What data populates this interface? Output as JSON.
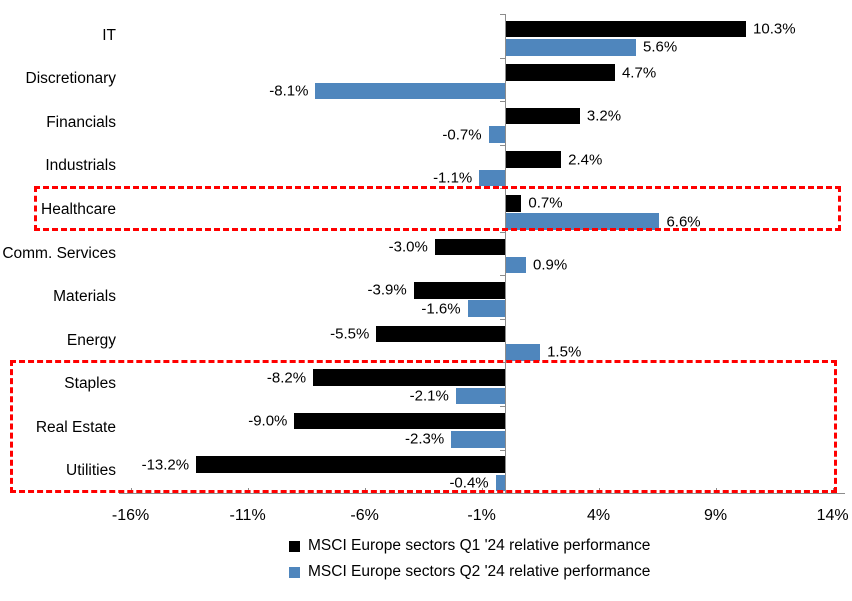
{
  "chart_data": {
    "type": "bar",
    "orientation": "horizontal",
    "title": "",
    "categories": [
      "IT",
      "Discretionary",
      "Financials",
      "Industrials",
      "Healthcare",
      "Comm. Services",
      "Materials",
      "Energy",
      "Staples",
      "Real Estate",
      "Utilities"
    ],
    "series": [
      {
        "name": "MSCI Europe sectors Q1 '24 relative performance",
        "color": "#000000",
        "values": [
          10.3,
          4.7,
          3.2,
          2.4,
          0.7,
          -3.0,
          -3.9,
          -5.5,
          -8.2,
          -9.0,
          -13.2
        ]
      },
      {
        "name": "MSCI Europe sectors Q2 '24 relative performance",
        "color": "#4F86BD",
        "values": [
          5.6,
          -8.1,
          -0.7,
          -1.1,
          6.6,
          0.9,
          -1.6,
          1.5,
          -2.1,
          -2.3,
          -0.4
        ]
      }
    ],
    "data_labels": {
      "series_1": [
        "10.3%",
        "4.7%",
        "3.2%",
        "2.4%",
        "0.7%",
        "-3.0%",
        "-3.9%",
        "-5.5%",
        "-8.2%",
        "-9.0%",
        "-13.2%"
      ],
      "series_2": [
        "5.6%",
        "-8.1%",
        "-0.7%",
        "-1.1%",
        "6.6%",
        "0.9%",
        "-1.6%",
        "1.5%",
        "-2.1%",
        "-2.3%",
        "-0.4%"
      ]
    },
    "x_axis": {
      "tick_labels": [
        "-16%",
        "-11%",
        "-6%",
        "-1%",
        "4%",
        "9%",
        "14%"
      ],
      "tick_values": [
        -16,
        -11,
        -6,
        -1,
        4,
        9,
        14
      ],
      "grid": false
    },
    "legend_position": "bottom-center",
    "highlight_color": "#FF0000",
    "highlights": [
      {
        "categories": [
          "Healthcare"
        ]
      },
      {
        "categories": [
          "Staples",
          "Real Estate",
          "Utilities"
        ]
      }
    ]
  }
}
